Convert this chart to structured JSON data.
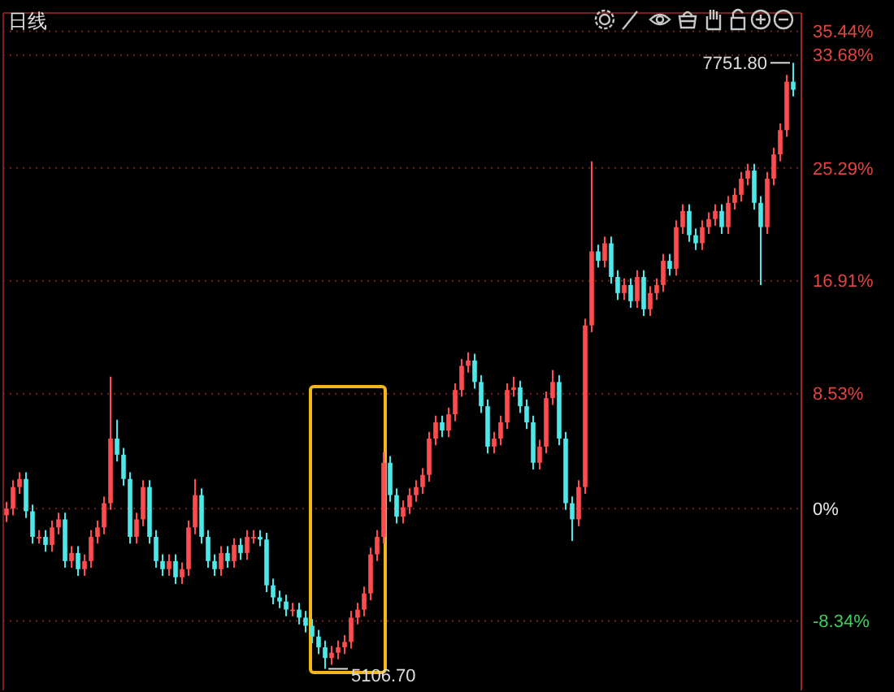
{
  "chart_data": {
    "type": "candlestick",
    "title": "日线",
    "categories": [
      null,
      null,
      null,
      null,
      null,
      null,
      null,
      null,
      null,
      null,
      null,
      null,
      null,
      null,
      null,
      null,
      null,
      null,
      null,
      null,
      null,
      null,
      null,
      null,
      null,
      null,
      null,
      null,
      null,
      null,
      null,
      null,
      null,
      null,
      null,
      null,
      null,
      null,
      null,
      null,
      null,
      null,
      null,
      null,
      null,
      null,
      null,
      null,
      null,
      null,
      null,
      null,
      null,
      null,
      null,
      null,
      null,
      null,
      null,
      null,
      null,
      null,
      null,
      null,
      null,
      null,
      null,
      null,
      null,
      null,
      null,
      null,
      null,
      null,
      null,
      null,
      null,
      null,
      null,
      null,
      null,
      null,
      null,
      null,
      null,
      null,
      null,
      null,
      null,
      null,
      null,
      null,
      null,
      null,
      null,
      null,
      null,
      null,
      null,
      null,
      null,
      null,
      null,
      null,
      null,
      null,
      null,
      null,
      null,
      null,
      null,
      null,
      null,
      null,
      null,
      null,
      null,
      null,
      null,
      null,
      null,
      null
    ],
    "ohlc": [
      [
        -0.5,
        0.5,
        -1.0,
        0
      ],
      [
        0,
        2.1,
        -0.5,
        1.6
      ],
      [
        1.6,
        2.7,
        1.1,
        2.2
      ],
      [
        2.2,
        2.7,
        -0.7,
        -0.2
      ],
      [
        -0.2,
        0.3,
        -2.6,
        -2.1
      ],
      [
        -2.1,
        -1.6,
        -2.6,
        -2.1
      ],
      [
        -2.1,
        -1.6,
        -3.2,
        -2.7
      ],
      [
        -2.7,
        -0.9,
        -3.2,
        -1.4
      ],
      [
        -1.4,
        -0.3,
        -1.9,
        -0.8
      ],
      [
        -0.8,
        -0.3,
        -4.4,
        -3.9
      ],
      [
        -3.9,
        -2.8,
        -4.4,
        -3.3
      ],
      [
        -3.3,
        -2.8,
        -5.0,
        -4.5
      ],
      [
        -4.5,
        -3.4,
        -5.0,
        -3.9
      ],
      [
        -3.9,
        -1.6,
        -4.4,
        -2.1
      ],
      [
        -2.1,
        -0.9,
        -2.6,
        -1.4
      ],
      [
        -1.4,
        0.9,
        -1.9,
        0.4
      ],
      [
        0.4,
        9.8,
        -0.1,
        5.2
      ],
      [
        5.2,
        6.6,
        3.5,
        4.0
      ],
      [
        4.0,
        4.5,
        1.7,
        2.2
      ],
      [
        2.2,
        2.7,
        -2.6,
        -2.1
      ],
      [
        -2.1,
        -0.3,
        -2.6,
        -0.8
      ],
      [
        -0.8,
        2.1,
        -1.3,
        1.6
      ],
      [
        1.6,
        2.1,
        -2.6,
        -2.1
      ],
      [
        -2.1,
        -1.6,
        -4.4,
        -3.9
      ],
      [
        -3.9,
        -3.4,
        -5.0,
        -4.5
      ],
      [
        -4.5,
        -3.4,
        -5.0,
        -3.9
      ],
      [
        -3.9,
        -3.4,
        -5.6,
        -5.1
      ],
      [
        -5.1,
        -4.0,
        -5.6,
        -4.5
      ],
      [
        -4.5,
        -0.9,
        -5.0,
        -1.4
      ],
      [
        -1.4,
        2.2,
        -1.9,
        1.0
      ],
      [
        1.0,
        1.5,
        -2.6,
        -2.1
      ],
      [
        -2.1,
        -1.6,
        -4.4,
        -3.9
      ],
      [
        -3.9,
        -3.4,
        -5.0,
        -4.5
      ],
      [
        -4.5,
        -2.8,
        -5.0,
        -3.3
      ],
      [
        -3.3,
        -2.8,
        -4.4,
        -3.9
      ],
      [
        -3.9,
        -2.2,
        -4.4,
        -2.7
      ],
      [
        -2.7,
        -2.2,
        -3.8,
        -3.3
      ],
      [
        -3.3,
        -1.6,
        -3.8,
        -2.1
      ],
      [
        -2.1,
        -1.6,
        -2.6,
        -2.1
      ],
      [
        -2.1,
        -1.6,
        -2.8,
        -2.3
      ],
      [
        -2.3,
        -1.8,
        -6.2,
        -5.7
      ],
      [
        -5.7,
        -5.2,
        -7.1,
        -6.6
      ],
      [
        -6.6,
        -6.1,
        -7.4,
        -6.9
      ],
      [
        -6.9,
        -6.4,
        -8.0,
        -7.5
      ],
      [
        -7.5,
        -7.0,
        -8.0,
        -7.5
      ],
      [
        -7.5,
        -7.0,
        -8.6,
        -8.1
      ],
      [
        -8.1,
        -7.6,
        -9.2,
        -8.7
      ],
      [
        -8.7,
        -8.2,
        -10.0,
        -9.5
      ],
      [
        -9.5,
        -9.0,
        -10.8,
        -10.3
      ],
      [
        -10.3,
        -9.8,
        -11.9,
        -11.1
      ],
      [
        -11.1,
        -10.2,
        -11.6,
        -10.7
      ],
      [
        -10.7,
        -9.8,
        -11.2,
        -10.3
      ],
      [
        -10.3,
        -9.4,
        -10.8,
        -9.9
      ],
      [
        -9.9,
        -7.6,
        -10.4,
        -8.1
      ],
      [
        -8.1,
        -7.0,
        -8.6,
        -7.5
      ],
      [
        -7.5,
        -5.8,
        -8.0,
        -6.3
      ],
      [
        -6.3,
        -2.9,
        -6.8,
        -3.4
      ],
      [
        -3.4,
        -1.6,
        -3.9,
        -2.1
      ],
      [
        -2.1,
        4.2,
        -2.6,
        3.4
      ],
      [
        3.4,
        3.9,
        0.5,
        1.0
      ],
      [
        1.0,
        1.5,
        -1.1,
        -0.6
      ],
      [
        -0.6,
        0.6,
        -1.1,
        0.1
      ],
      [
        0.1,
        1.5,
        -0.4,
        1.0
      ],
      [
        1.0,
        2.1,
        0.5,
        1.6
      ],
      [
        1.6,
        3.0,
        1.1,
        2.5
      ],
      [
        2.5,
        5.7,
        2.0,
        5.2
      ],
      [
        5.2,
        6.9,
        4.7,
        6.4
      ],
      [
        6.4,
        6.9,
        5.3,
        5.8
      ],
      [
        5.8,
        7.5,
        5.3,
        7.0
      ],
      [
        7.0,
        9.3,
        6.5,
        8.8
      ],
      [
        8.8,
        11.1,
        8.3,
        10.6
      ],
      [
        10.6,
        11.6,
        10.1,
        11.0
      ],
      [
        11.0,
        11.5,
        8.9,
        9.4
      ],
      [
        9.4,
        9.9,
        7.1,
        7.6
      ],
      [
        7.6,
        8.1,
        4.1,
        4.6
      ],
      [
        4.6,
        5.7,
        4.1,
        5.2
      ],
      [
        5.2,
        6.9,
        4.7,
        6.4
      ],
      [
        6.4,
        9.3,
        5.9,
        8.8
      ],
      [
        8.8,
        9.8,
        8.3,
        9.0
      ],
      [
        9.0,
        9.5,
        7.1,
        7.6
      ],
      [
        7.6,
        8.1,
        5.9,
        6.4
      ],
      [
        6.4,
        6.9,
        2.9,
        3.4
      ],
      [
        3.4,
        5.1,
        2.9,
        4.6
      ],
      [
        4.6,
        8.7,
        4.1,
        8.2
      ],
      [
        8.2,
        10.3,
        7.7,
        9.4
      ],
      [
        9.4,
        9.9,
        4.7,
        5.2
      ],
      [
        5.2,
        5.7,
        -0.1,
        0.4
      ],
      [
        0.4,
        0.9,
        -2.4,
        -0.8
      ],
      [
        -0.8,
        2.1,
        -1.3,
        1.6
      ],
      [
        1.6,
        14.1,
        1.1,
        13.6
      ],
      [
        13.6,
        25.8,
        13.1,
        19.1
      ],
      [
        19.1,
        19.6,
        17.9,
        18.4
      ],
      [
        18.4,
        20.2,
        17.9,
        19.7
      ],
      [
        19.7,
        20.2,
        16.7,
        17.2
      ],
      [
        17.2,
        17.7,
        15.5,
        16.0
      ],
      [
        16.0,
        17.1,
        15.5,
        16.6
      ],
      [
        16.6,
        17.1,
        14.9,
        15.4
      ],
      [
        15.4,
        17.7,
        14.9,
        17.2
      ],
      [
        17.2,
        17.7,
        14.3,
        14.8
      ],
      [
        14.8,
        16.5,
        14.3,
        16.0
      ],
      [
        16.0,
        17.1,
        15.5,
        16.6
      ],
      [
        16.6,
        18.9,
        16.1,
        18.4
      ],
      [
        18.4,
        18.9,
        17.3,
        17.8
      ],
      [
        17.8,
        21.4,
        17.3,
        20.9
      ],
      [
        20.9,
        22.6,
        20.4,
        22.1
      ],
      [
        22.1,
        22.6,
        19.8,
        20.3
      ],
      [
        20.3,
        20.8,
        19.2,
        19.7
      ],
      [
        19.7,
        21.4,
        19.2,
        20.9
      ],
      [
        20.9,
        22.0,
        20.4,
        21.5
      ],
      [
        21.5,
        22.6,
        21.0,
        22.1
      ],
      [
        22.1,
        22.6,
        20.4,
        20.9
      ],
      [
        20.9,
        23.2,
        20.4,
        22.7
      ],
      [
        22.7,
        23.8,
        22.2,
        23.3
      ],
      [
        23.3,
        25.0,
        22.8,
        24.5
      ],
      [
        24.5,
        25.6,
        24.0,
        25.1
      ],
      [
        25.1,
        25.6,
        22.2,
        22.7
      ],
      [
        22.7,
        23.2,
        16.6,
        20.9
      ],
      [
        20.9,
        25.0,
        20.4,
        24.5
      ],
      [
        24.5,
        26.8,
        24.0,
        26.3
      ],
      [
        26.3,
        28.6,
        25.8,
        28.1
      ],
      [
        28.1,
        32.2,
        27.6,
        31.7
      ],
      [
        31.7,
        33.1,
        30.6,
        31.1
      ]
    ],
    "ylim": [
      -13.5,
      36.8
    ],
    "yticks": [
      {
        "value": 35.44,
        "label": "35.44%"
      },
      {
        "value": 33.68,
        "label": "33.68%"
      },
      {
        "value": 25.29,
        "label": "25.29%"
      },
      {
        "value": 16.91,
        "label": "16.91%"
      },
      {
        "value": 8.53,
        "label": "8.53%"
      },
      {
        "value": 0,
        "label": "0%"
      },
      {
        "value": -8.34,
        "label": "-8.34%"
      }
    ],
    "tick_labels": "y",
    "grid": "y",
    "annotations": [
      "7751.80",
      "5106.70"
    ]
  }
}
